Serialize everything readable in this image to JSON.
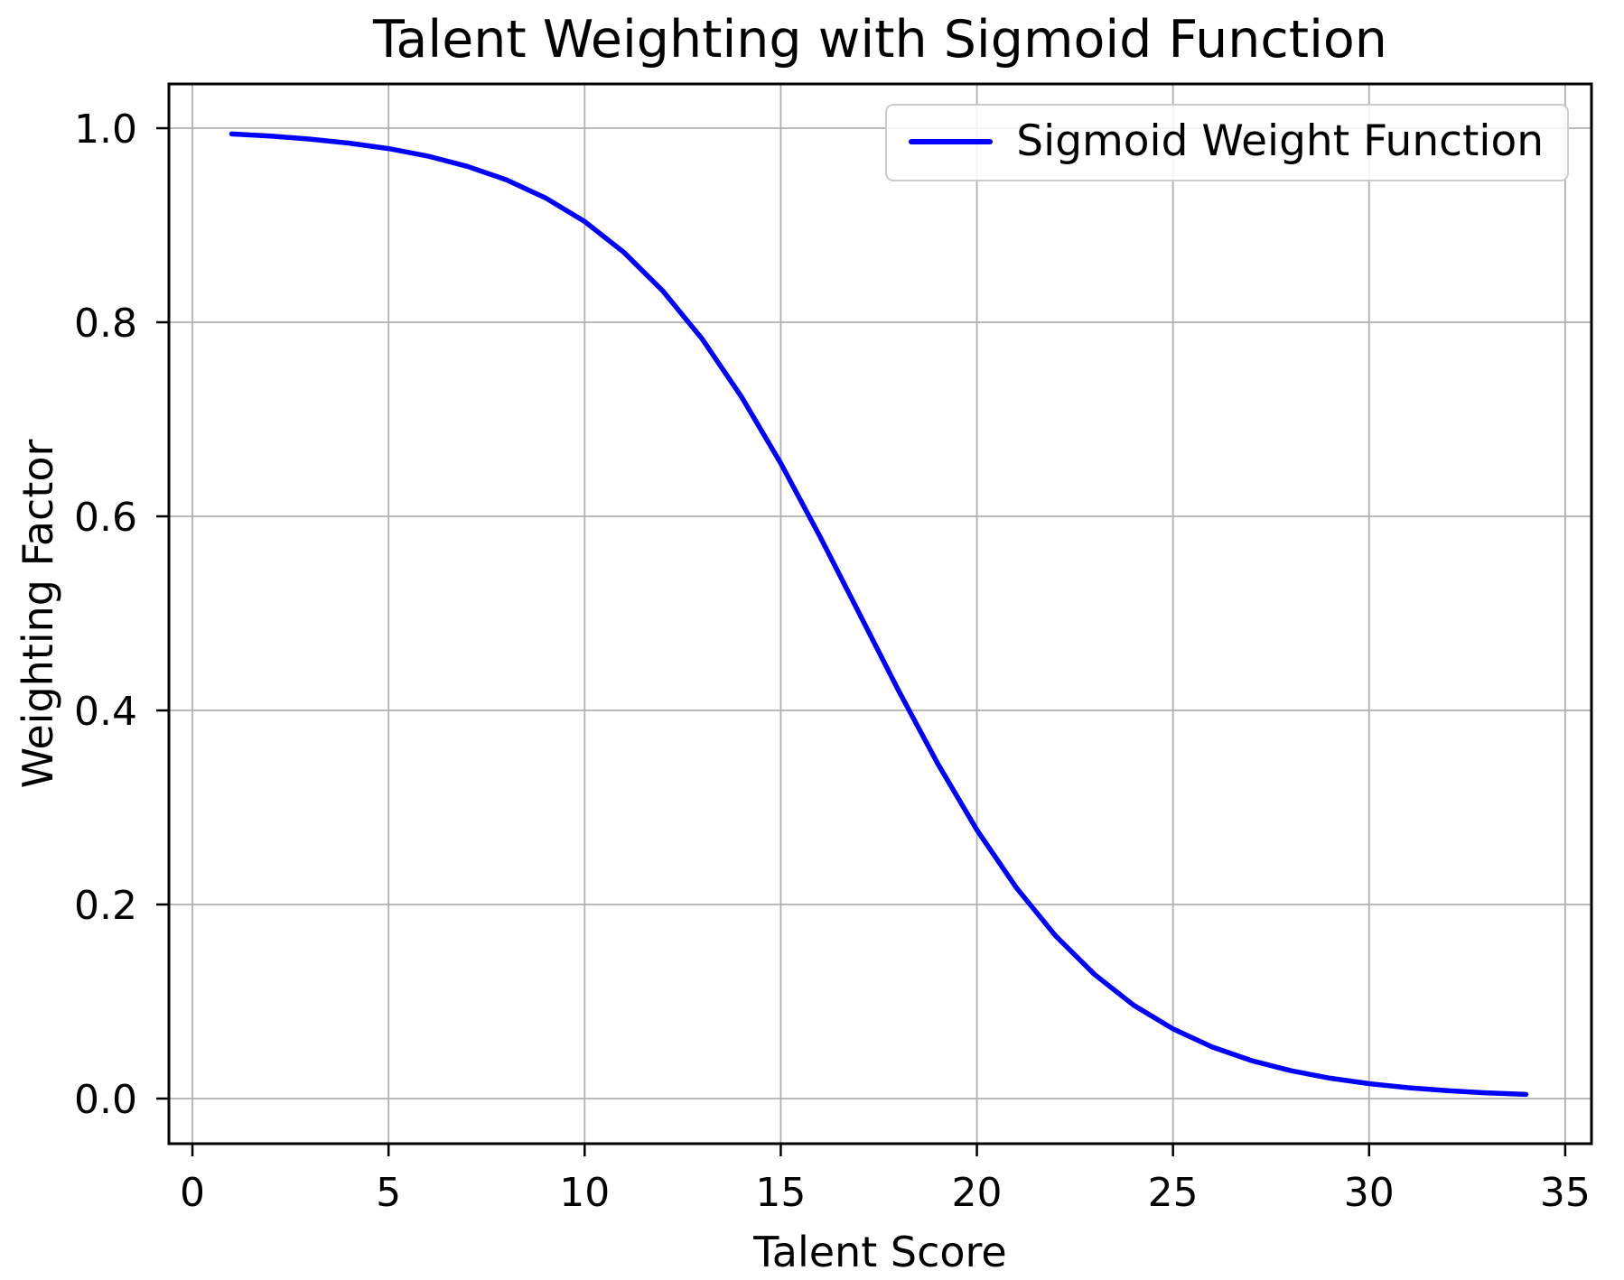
{
  "chart_data": {
    "type": "line",
    "title": "Talent Weighting with Sigmoid Function",
    "xlabel": "Talent Score",
    "ylabel": "Weighting Factor",
    "xlim": [
      -0.6,
      35.67
    ],
    "ylim": [
      -0.0465,
      1.0456
    ],
    "xticks": [
      0,
      5,
      10,
      15,
      20,
      25,
      30,
      35
    ],
    "xtick_labels": [
      "0",
      "5",
      "10",
      "15",
      "20",
      "25",
      "30",
      "35"
    ],
    "yticks": [
      0.0,
      0.2,
      0.4,
      0.6,
      0.8,
      1.0
    ],
    "ytick_labels": [
      "0.0",
      "0.2",
      "0.4",
      "0.6",
      "0.8",
      "1.0"
    ],
    "grid": true,
    "legend": {
      "position": "upper right",
      "entries": [
        {
          "label": "Sigmoid Weight Function",
          "color": "#0000ff"
        }
      ]
    },
    "series": [
      {
        "name": "Sigmoid Weight Function",
        "color": "#0000ff",
        "line_width": 5.5,
        "x": [
          1,
          2,
          3,
          4,
          5,
          6,
          7,
          8,
          9,
          10,
          11,
          12,
          13,
          14,
          15,
          16,
          17,
          18,
          19,
          20,
          21,
          22,
          23,
          24,
          25,
          26,
          27,
          28,
          29,
          30,
          31,
          32,
          33,
          34
        ],
        "y": [
          0.9941,
          0.9918,
          0.9888,
          0.9846,
          0.979,
          0.9713,
          0.9608,
          0.9469,
          0.9282,
          0.9038,
          0.8721,
          0.832,
          0.7825,
          0.7231,
          0.6547,
          0.5793,
          0.5,
          0.4207,
          0.3453,
          0.2769,
          0.2176,
          0.168,
          0.1279,
          0.0962,
          0.0718,
          0.0531,
          0.0392,
          0.0288,
          0.021,
          0.0154,
          0.0112,
          0.0082,
          0.0059,
          0.0043
        ]
      }
    ]
  },
  "colors": {
    "line": "#0000ff",
    "grid": "#b0b0b0",
    "spine": "#000000",
    "text": "#000000",
    "legend_border": "#cccccc"
  }
}
